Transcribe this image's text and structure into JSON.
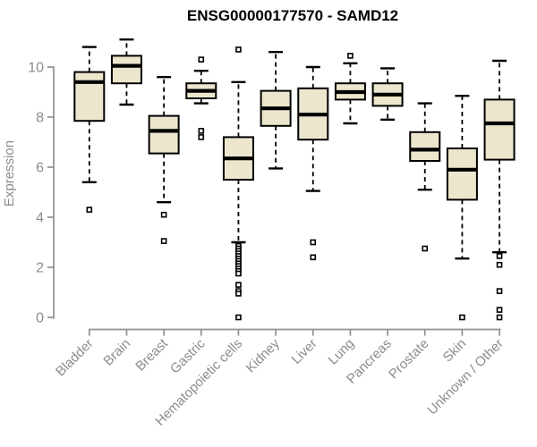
{
  "chart_data": {
    "type": "boxplot",
    "title": "ENSG00000177570 - SAMD12",
    "xlabel": "",
    "ylabel": "Expression",
    "ylim": [
      0,
      11.2
    ],
    "y_ticks": [
      0,
      2,
      4,
      6,
      8,
      10
    ],
    "grid": false,
    "legend": false,
    "colors": {
      "box_fill": "#ece6cd",
      "box_border": "#000000",
      "median": "#000000",
      "whisker": "#000000",
      "outlier": "#000000",
      "axis_line": "#909090",
      "axis_text": "#8c8c8c",
      "title_color": "#000000",
      "background": "#ffffff"
    },
    "categories": [
      "Bladder",
      "Brain",
      "Breast",
      "Gastric",
      "Hematopoietic cells",
      "Kidney",
      "Liver",
      "Lung",
      "Pancreas",
      "Prostate",
      "Skin",
      "Unknown / Other"
    ],
    "boxes": [
      {
        "category": "Bladder",
        "whisker_low": 5.4,
        "q1": 7.85,
        "median": 9.4,
        "q3": 9.8,
        "whisker_high": 10.8,
        "outliers": [
          4.3
        ]
      },
      {
        "category": "Brain",
        "whisker_low": 8.5,
        "q1": 9.35,
        "median": 10.05,
        "q3": 10.45,
        "whisker_high": 11.1,
        "outliers": []
      },
      {
        "category": "Breast",
        "whisker_low": 4.6,
        "q1": 6.55,
        "median": 7.45,
        "q3": 8.05,
        "whisker_high": 9.6,
        "outliers": [
          4.1,
          3.05
        ]
      },
      {
        "category": "Gastric",
        "whisker_low": 8.55,
        "q1": 8.75,
        "median": 9.05,
        "q3": 9.35,
        "whisker_high": 9.85,
        "outliers": [
          10.3,
          7.45,
          7.2
        ]
      },
      {
        "category": "Hematopoietic cells",
        "whisker_low": 3.0,
        "q1": 5.5,
        "median": 6.35,
        "q3": 7.2,
        "whisker_high": 9.4,
        "outliers": [
          10.7,
          2.85,
          2.75,
          2.65,
          2.55,
          2.45,
          2.35,
          2.25,
          2.15,
          2.05,
          1.95,
          1.85,
          1.75,
          1.3,
          1.05,
          0.95,
          0.0
        ]
      },
      {
        "category": "Kidney",
        "whisker_low": 5.95,
        "q1": 7.65,
        "median": 8.35,
        "q3": 9.05,
        "whisker_high": 10.6,
        "outliers": []
      },
      {
        "category": "Liver",
        "whisker_low": 5.05,
        "q1": 7.1,
        "median": 8.1,
        "q3": 9.15,
        "whisker_high": 10.0,
        "outliers": [
          3.0,
          2.4
        ]
      },
      {
        "category": "Lung",
        "whisker_low": 7.75,
        "q1": 8.7,
        "median": 9.0,
        "q3": 9.35,
        "whisker_high": 10.15,
        "outliers": [
          10.45
        ]
      },
      {
        "category": "Pancreas",
        "whisker_low": 7.9,
        "q1": 8.45,
        "median": 8.9,
        "q3": 9.35,
        "whisker_high": 9.95,
        "outliers": []
      },
      {
        "category": "Prostate",
        "whisker_low": 5.1,
        "q1": 6.25,
        "median": 6.7,
        "q3": 7.4,
        "whisker_high": 8.55,
        "outliers": [
          2.75
        ]
      },
      {
        "category": "Skin",
        "whisker_low": 2.35,
        "q1": 4.7,
        "median": 5.9,
        "q3": 6.75,
        "whisker_high": 8.85,
        "outliers": [
          0.0
        ]
      },
      {
        "category": "Unknown / Other",
        "whisker_low": 2.6,
        "q1": 6.3,
        "median": 7.75,
        "q3": 8.7,
        "whisker_high": 10.25,
        "outliers": [
          2.45,
          2.1,
          1.05,
          0.3,
          0.0
        ]
      }
    ]
  }
}
